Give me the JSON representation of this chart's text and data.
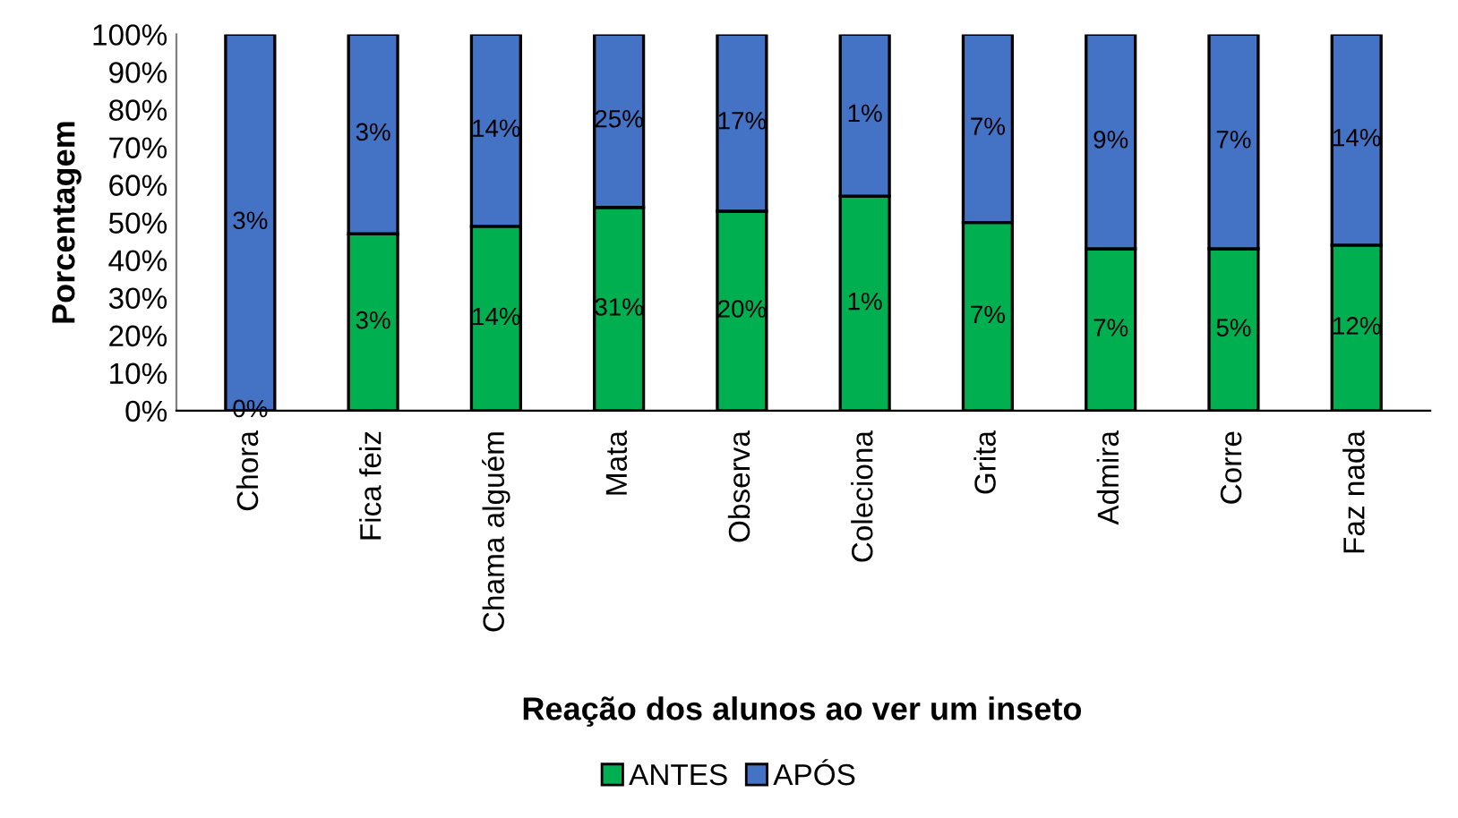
{
  "chart_data": {
    "type": "bar",
    "stacked": true,
    "xlabel": "Reação dos alunos ao ver um inseto",
    "ylabel": "Porcentagem",
    "categories": [
      "Chora",
      "Fica feiz",
      "Chama alguém",
      "Mata",
      "Observa",
      "Coleciona",
      "Grita",
      "Admira",
      "Corre",
      "Faz nada"
    ],
    "series": [
      {
        "name": "ANTES",
        "color": "#00b050",
        "values": [
          0,
          47,
          49,
          54,
          53,
          57,
          50,
          43,
          43,
          44
        ]
      },
      {
        "name": "APÓS",
        "color": "#4472c4",
        "values": [
          100,
          53,
          51,
          46,
          47,
          43,
          50,
          57,
          57,
          56
        ]
      }
    ],
    "annotations": [
      "0%",
      "3%",
      "14%",
      "31%",
      "20%",
      "1%",
      "7%",
      "7%",
      "5%",
      "12%",
      "3%",
      "3%",
      "14%",
      "25%",
      "17%",
      "1%",
      "7%",
      "9%",
      "7%",
      "14%"
    ],
    "ylim": [
      0,
      100
    ],
    "yticks": [
      {
        "value": 0,
        "label": "0%"
      },
      {
        "value": 10,
        "label": "10%"
      },
      {
        "value": 20,
        "label": "20%"
      },
      {
        "value": 30,
        "label": "30%"
      },
      {
        "value": 40,
        "label": "40%"
      },
      {
        "value": 50,
        "label": "50%"
      },
      {
        "value": 60,
        "label": "60%"
      },
      {
        "value": 70,
        "label": "70%"
      },
      {
        "value": 80,
        "label": "80%"
      },
      {
        "value": 90,
        "label": "90%"
      },
      {
        "value": 100,
        "label": "100%"
      }
    ],
    "grid": false,
    "legend": "bottom"
  }
}
